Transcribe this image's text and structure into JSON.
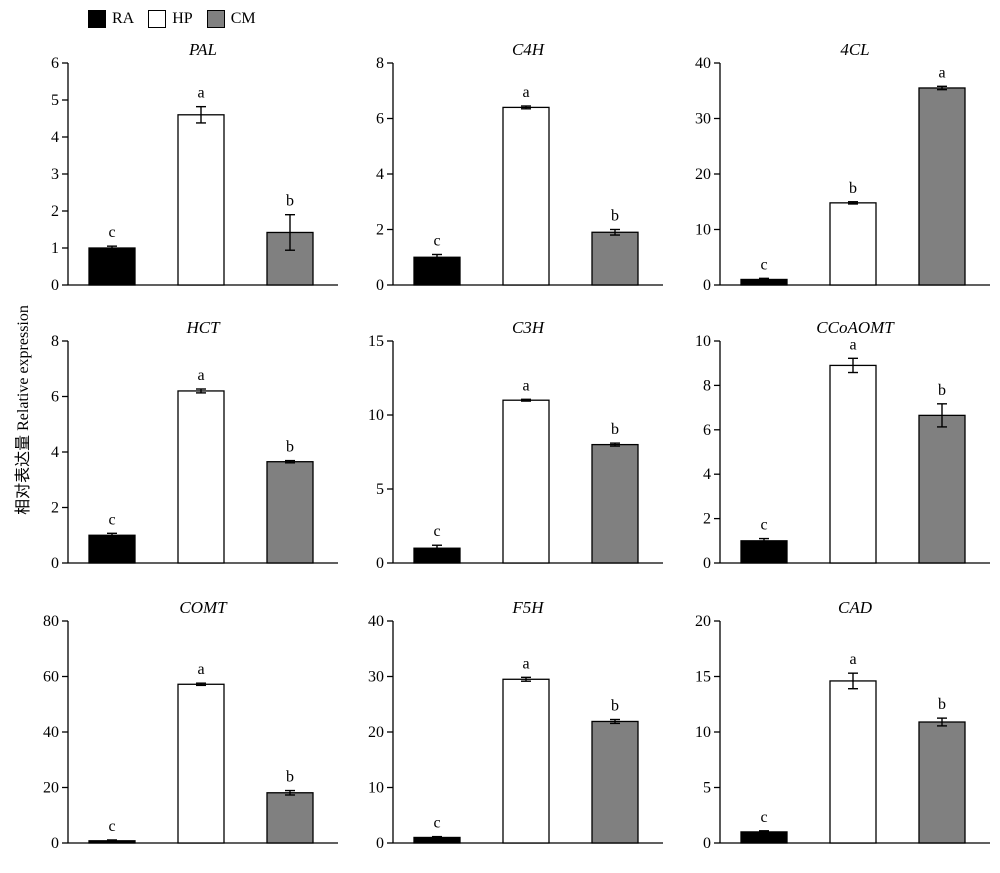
{
  "legend": [
    {
      "name": "RA",
      "color": "#000000"
    },
    {
      "name": "HP",
      "color": "#ffffff"
    },
    {
      "name": "CM",
      "color": "#808080"
    }
  ],
  "ylabel": "相对表达量 Relative expression",
  "chart_data": [
    {
      "type": "bar",
      "title": "PAL",
      "categories": [
        "RA",
        "HP",
        "CM"
      ],
      "values": [
        1.0,
        4.6,
        1.42
      ],
      "errors": [
        0.05,
        0.22,
        0.48
      ],
      "labels": [
        "c",
        "a",
        "b"
      ],
      "ylim": [
        0,
        6
      ],
      "yticks": [
        0,
        1,
        2,
        3,
        4,
        5,
        6
      ]
    },
    {
      "type": "bar",
      "title": "C4H",
      "categories": [
        "RA",
        "HP",
        "CM"
      ],
      "values": [
        1.0,
        6.4,
        1.9
      ],
      "errors": [
        0.1,
        0.05,
        0.1
      ],
      "labels": [
        "c",
        "a",
        "b"
      ],
      "ylim": [
        0,
        8
      ],
      "yticks": [
        0,
        2,
        4,
        6,
        8
      ]
    },
    {
      "type": "bar",
      "title": "4CL",
      "categories": [
        "RA",
        "HP",
        "CM"
      ],
      "values": [
        1.0,
        14.8,
        35.5
      ],
      "errors": [
        0.2,
        0.2,
        0.3
      ],
      "labels": [
        "c",
        "b",
        "a"
      ],
      "ylim": [
        0,
        40
      ],
      "yticks": [
        0,
        10,
        20,
        30,
        40
      ]
    },
    {
      "type": "bar",
      "title": "HCT",
      "categories": [
        "RA",
        "HP",
        "CM"
      ],
      "values": [
        1.0,
        6.2,
        3.65
      ],
      "errors": [
        0.07,
        0.07,
        0.04
      ],
      "labels": [
        "c",
        "a",
        "b"
      ],
      "ylim": [
        0,
        8
      ],
      "yticks": [
        0,
        2,
        4,
        6,
        8
      ]
    },
    {
      "type": "bar",
      "title": "C3H",
      "categories": [
        "RA",
        "HP",
        "CM"
      ],
      "values": [
        1.0,
        11.0,
        8.0
      ],
      "errors": [
        0.2,
        0.06,
        0.1
      ],
      "labels": [
        "c",
        "a",
        "b"
      ],
      "ylim": [
        0,
        15
      ],
      "yticks": [
        0,
        5,
        10,
        15
      ]
    },
    {
      "type": "bar",
      "title": "CCoAOMT",
      "categories": [
        "RA",
        "HP",
        "CM"
      ],
      "values": [
        1.0,
        8.9,
        6.65
      ],
      "errors": [
        0.1,
        0.32,
        0.52
      ],
      "labels": [
        "c",
        "a",
        "b"
      ],
      "ylim": [
        0,
        10
      ],
      "yticks": [
        0,
        2,
        4,
        6,
        8,
        10
      ]
    },
    {
      "type": "bar",
      "title": "COMT",
      "categories": [
        "RA",
        "HP",
        "CM"
      ],
      "values": [
        0.8,
        57.2,
        18.1
      ],
      "errors": [
        0.3,
        0.4,
        0.8
      ],
      "labels": [
        "c",
        "a",
        "b"
      ],
      "ylim": [
        0,
        80
      ],
      "yticks": [
        0,
        20,
        40,
        60,
        80
      ]
    },
    {
      "type": "bar",
      "title": "F5H",
      "categories": [
        "RA",
        "HP",
        "CM"
      ],
      "values": [
        1.0,
        29.5,
        21.9
      ],
      "errors": [
        0.15,
        0.35,
        0.35
      ],
      "labels": [
        "c",
        "a",
        "b"
      ],
      "ylim": [
        0,
        40
      ],
      "yticks": [
        0,
        10,
        20,
        30,
        40
      ]
    },
    {
      "type": "bar",
      "title": "CAD",
      "categories": [
        "RA",
        "HP",
        "CM"
      ],
      "values": [
        1.0,
        14.6,
        10.9
      ],
      "errors": [
        0.1,
        0.7,
        0.35
      ],
      "labels": [
        "c",
        "a",
        "b"
      ],
      "ylim": [
        0,
        20
      ],
      "yticks": [
        0,
        5,
        10,
        15,
        20
      ]
    }
  ]
}
